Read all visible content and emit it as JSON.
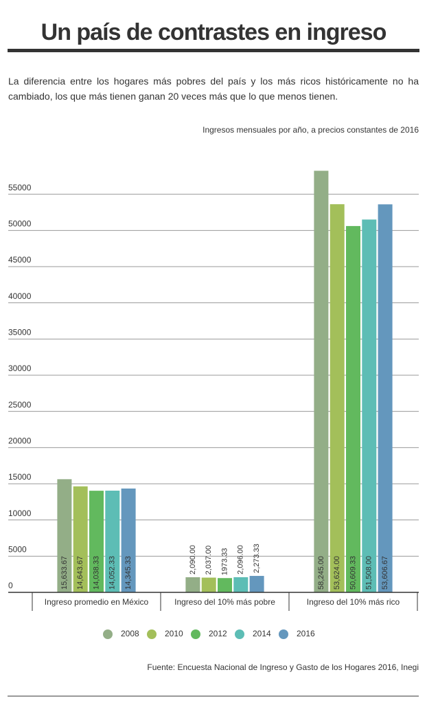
{
  "chart_data": {
    "type": "bar",
    "title": "Un país de contrastes en ingreso",
    "subtitle": "La diferencia entre los hogares más pobres del país y los más ricos históricamente no ha cambiado, los que más tienen ganan 20 veces más que lo que menos tienen.",
    "note": "Ingresos mensuales por año, a precios constantes de 2016",
    "source": "Fuente: Encuesta Nacional de Ingreso y Gasto de los Hogares 2016, Inegi",
    "categories": [
      "Ingreso promedio en México",
      "Ingreso del 10% más pobre",
      "Ingreso del 10% más rico"
    ],
    "series": [
      {
        "name": "2008",
        "color": "#93ae87",
        "values": [
          15633.67,
          2090,
          58245
        ],
        "value_labels": [
          "15,633.67",
          "2,090.00",
          "58,245.00"
        ]
      },
      {
        "name": "2010",
        "color": "#a3bf5a",
        "values": [
          14643.67,
          2037,
          53624
        ],
        "value_labels": [
          "14,643.67",
          "2,037.00",
          "53,624.00"
        ]
      },
      {
        "name": "2012",
        "color": "#62b95e",
        "values": [
          14038.33,
          1973.33,
          50609.33
        ],
        "value_labels": [
          "14,038.33",
          "1973.33",
          "50,609.33"
        ]
      },
      {
        "name": "2014",
        "color": "#5dbdb5",
        "values": [
          14052.33,
          2096,
          51508
        ],
        "value_labels": [
          "14,052.33",
          "2,096.00",
          "51,508.00"
        ]
      },
      {
        "name": "2016",
        "color": "#6497bd",
        "values": [
          14345.33,
          2273.33,
          53606.67
        ],
        "value_labels": [
          "14,345.33",
          "2,273.33",
          "53,606.67"
        ]
      }
    ],
    "ylim": [
      0,
      60000
    ],
    "yticks": [
      0,
      5000,
      10000,
      15000,
      20000,
      25000,
      30000,
      35000,
      40000,
      45000,
      50000,
      55000
    ],
    "grid": true
  }
}
